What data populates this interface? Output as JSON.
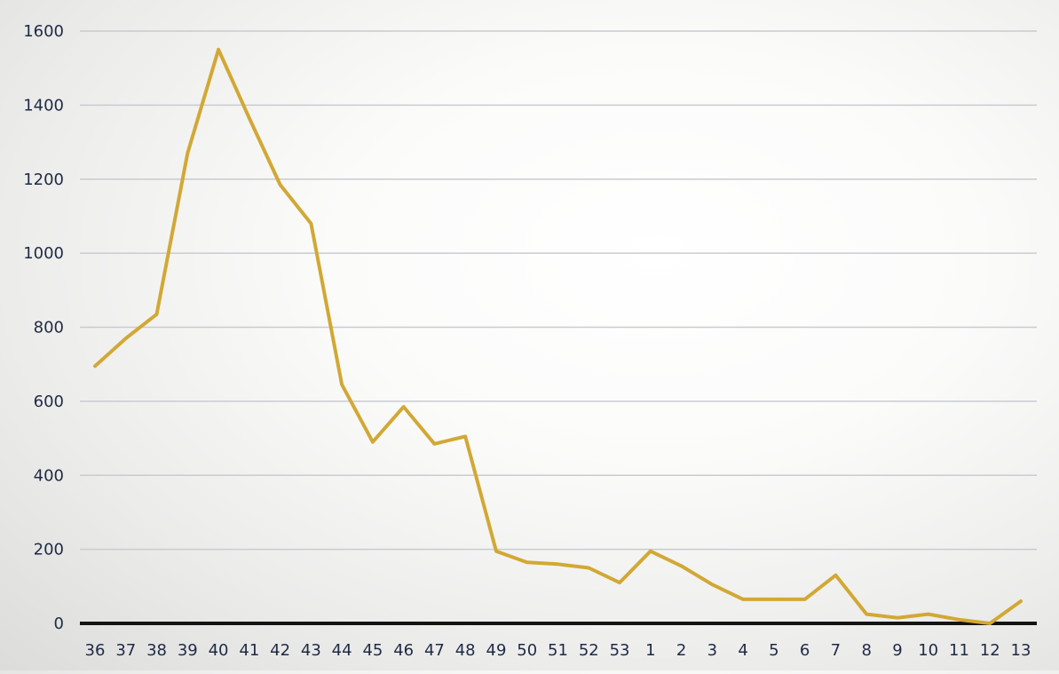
{
  "chart_data": {
    "type": "line",
    "title": "",
    "xlabel": "",
    "ylabel": "",
    "categories": [
      "36",
      "37",
      "38",
      "39",
      "40",
      "41",
      "42",
      "43",
      "44",
      "45",
      "46",
      "47",
      "48",
      "49",
      "50",
      "51",
      "52",
      "53",
      "1",
      "2",
      "3",
      "4",
      "5",
      "6",
      "7",
      "8",
      "9",
      "10",
      "11",
      "12",
      "13"
    ],
    "series": [
      {
        "values": [
          695,
          770,
          835,
          1270,
          1550,
          1365,
          1185,
          1080,
          645,
          490,
          585,
          485,
          505,
          195,
          165,
          160,
          150,
          110,
          195,
          155,
          105,
          65,
          65,
          65,
          130,
          25,
          15,
          25,
          10,
          0,
          60
        ],
        "color": "#d2a835"
      }
    ],
    "ylim": [
      0,
      1600
    ],
    "yticks": [
      0,
      200,
      400,
      600,
      800,
      1000,
      1200,
      1400,
      1600
    ],
    "grid": true,
    "legend": "none",
    "colors": {
      "gridline": "#c8ccd0",
      "baseline": "#141414",
      "text": "#1f2a44"
    }
  }
}
